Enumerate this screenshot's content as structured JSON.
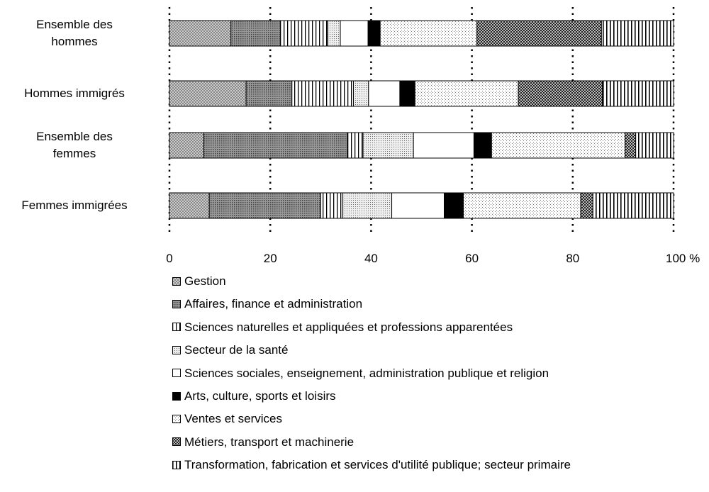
{
  "chart_data": {
    "type": "stacked-bar-horizontal",
    "categories": [
      "Ensemble des\nhommes",
      "Hommes immigrés",
      "Ensemble des\nfemmes",
      "Femmes immigrées"
    ],
    "series": [
      {
        "name": "Gestion",
        "pattern": "crosshatch",
        "values": [
          12.2,
          15.2,
          6.8,
          7.9
        ]
      },
      {
        "name": "Affaires, finance et administration",
        "pattern": "densedots",
        "values": [
          9.8,
          9.1,
          28.5,
          22.1
        ]
      },
      {
        "name": "Sciences naturelles et appliquées et professions apparentées",
        "pattern": "vlines",
        "values": [
          9.4,
          12.2,
          3.1,
          4.4
        ]
      },
      {
        "name": "Secteur de la santé",
        "pattern": "lightdots",
        "values": [
          2.5,
          3.0,
          10.0,
          9.7
        ]
      },
      {
        "name": "Sciences sociales, enseignement, administration publique et religion",
        "pattern": "white",
        "values": [
          5.5,
          6.2,
          12.0,
          10.4
        ]
      },
      {
        "name": "Arts, culture, sports et loisirs",
        "pattern": "black",
        "values": [
          2.4,
          3.0,
          3.5,
          3.8
        ]
      },
      {
        "name": "Ventes et services",
        "pattern": "sparsedots",
        "values": [
          19.2,
          20.5,
          26.5,
          23.3
        ]
      },
      {
        "name": "Métiers, transport et machinerie",
        "pattern": "checker",
        "values": [
          24.7,
          16.7,
          2.1,
          2.4
        ]
      },
      {
        "name": "Transformation, fabrication et services d'utilité publique; secteur primaire",
        "pattern": "vlines2",
        "values": [
          14.3,
          14.1,
          7.5,
          16.0
        ]
      }
    ],
    "xlim": [
      0,
      100
    ],
    "xticks": [
      0,
      20,
      40,
      60,
      80,
      {
        "value": 100,
        "label": "100 %"
      }
    ],
    "grid": true
  }
}
